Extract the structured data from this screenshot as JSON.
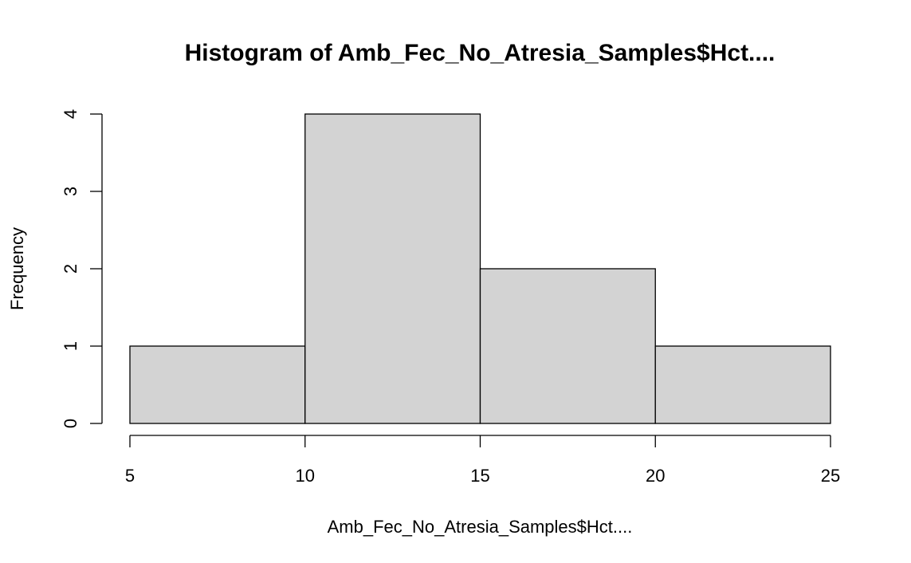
{
  "chart_data": {
    "type": "bar",
    "title": "Histogram of Amb_Fec_No_Atresia_Samples$Hct....",
    "xlabel": "Amb_Fec_No_Atresia_Samples$Hct....",
    "ylabel": "Frequency",
    "bins": [
      {
        "x0": 5,
        "x1": 10,
        "count": 1
      },
      {
        "x0": 10,
        "x1": 15,
        "count": 4
      },
      {
        "x0": 15,
        "x1": 20,
        "count": 2
      },
      {
        "x0": 20,
        "x1": 25,
        "count": 1
      }
    ],
    "xlim": [
      5,
      25
    ],
    "ylim": [
      0,
      4
    ],
    "x_ticks": [
      5,
      10,
      15,
      20,
      25
    ],
    "y_ticks": [
      0,
      1,
      2,
      3,
      4
    ],
    "bar_color": "#d3d3d3",
    "grid": false
  }
}
